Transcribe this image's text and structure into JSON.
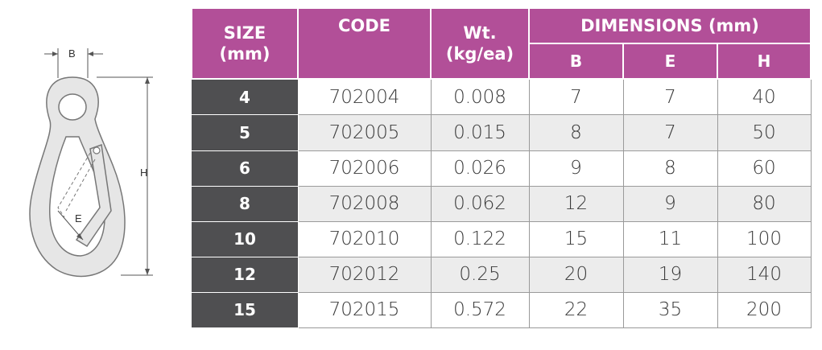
{
  "diagram": {
    "labels": {
      "b": "B",
      "h": "H",
      "e": "E"
    }
  },
  "table": {
    "headers": {
      "size": "SIZE\n(mm)",
      "code": "CODE",
      "weight": "Wt.\n(kg/ea)",
      "dimensions": "DIMENSIONS (mm)",
      "b": "B",
      "e": "E",
      "h": "H"
    },
    "rows": [
      {
        "size": "4",
        "code": "702004",
        "wt": "0.008",
        "b": "7",
        "e": "7",
        "h": "40"
      },
      {
        "size": "5",
        "code": "702005",
        "wt": "0.015",
        "b": "8",
        "e": "7",
        "h": "50"
      },
      {
        "size": "6",
        "code": "702006",
        "wt": "0.026",
        "b": "9",
        "e": "8",
        "h": "60"
      },
      {
        "size": "8",
        "code": "702008",
        "wt": "0.062",
        "b": "12",
        "e": "9",
        "h": "80"
      },
      {
        "size": "10",
        "code": "702010",
        "wt": "0.122",
        "b": "15",
        "e": "11",
        "h": "100"
      },
      {
        "size": "12",
        "code": "702012",
        "wt": "0.25",
        "b": "20",
        "e": "19",
        "h": "140"
      },
      {
        "size": "15",
        "code": "702015",
        "wt": "0.572",
        "b": "22",
        "e": "35",
        "h": "200"
      }
    ]
  },
  "colors": {
    "header_bg": "#b24f98",
    "size_col_bg": "#4f4f51",
    "stripe": "#ececec"
  }
}
